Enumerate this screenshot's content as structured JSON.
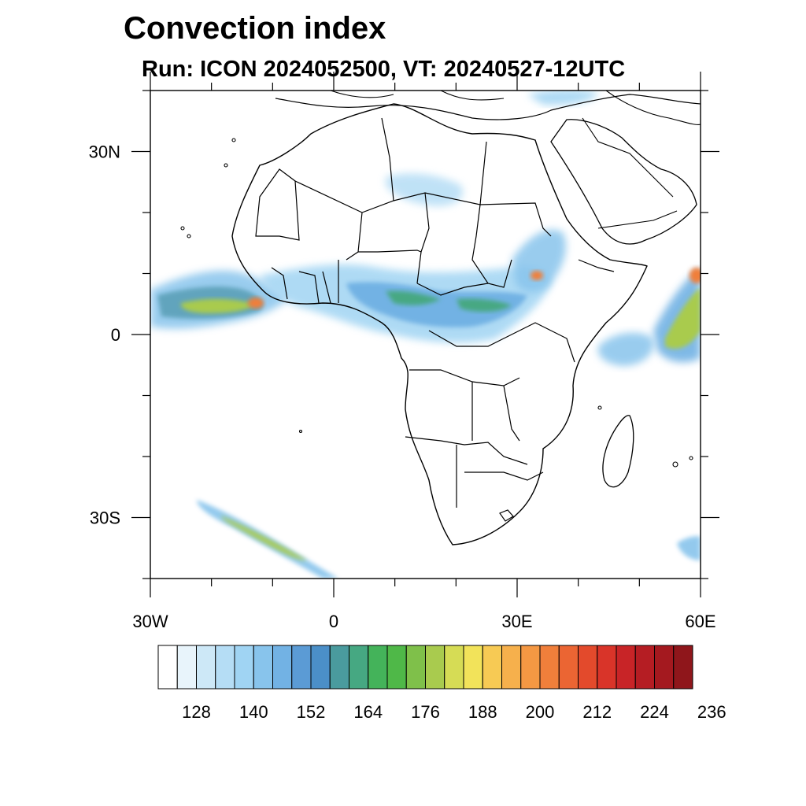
{
  "header": {
    "title": "Convection index",
    "subtitle": "Run: ICON 2024052500,  VT: 20240527-12UTC"
  },
  "map": {
    "lon_range": [
      -30,
      60
    ],
    "lat_range": [
      -40,
      40
    ],
    "lat_ticks": [
      {
        "value": 30,
        "label": "30N"
      },
      {
        "value": 0,
        "label": "0"
      },
      {
        "value": -30,
        "label": "30S"
      }
    ],
    "lon_ticks": [
      {
        "value": -30,
        "label": "30W"
      },
      {
        "value": 0,
        "label": "0"
      },
      {
        "value": 30,
        "label": "30E"
      },
      {
        "value": 60,
        "label": "60E"
      }
    ]
  },
  "colorbar": {
    "labels": [
      "128",
      "140",
      "152",
      "164",
      "176",
      "188",
      "200",
      "212",
      "224",
      "236"
    ],
    "colors": [
      "#ffffff",
      "#e8f4fb",
      "#cde8f7",
      "#b5ddf5",
      "#a0d4f3",
      "#88c4ec",
      "#72b2e4",
      "#5b9bd5",
      "#4b8fc8",
      "#4a9b9e",
      "#46a882",
      "#44b35a",
      "#4fb848",
      "#7fc04a",
      "#a9cb4e",
      "#d6dc55",
      "#f2e35a",
      "#f7ca54",
      "#f6b04c",
      "#f49843",
      "#f07f3b",
      "#eb6533",
      "#e34a2c",
      "#d93429",
      "#c82427",
      "#b51d23",
      "#a4191f",
      "#8f161b"
    ]
  }
}
